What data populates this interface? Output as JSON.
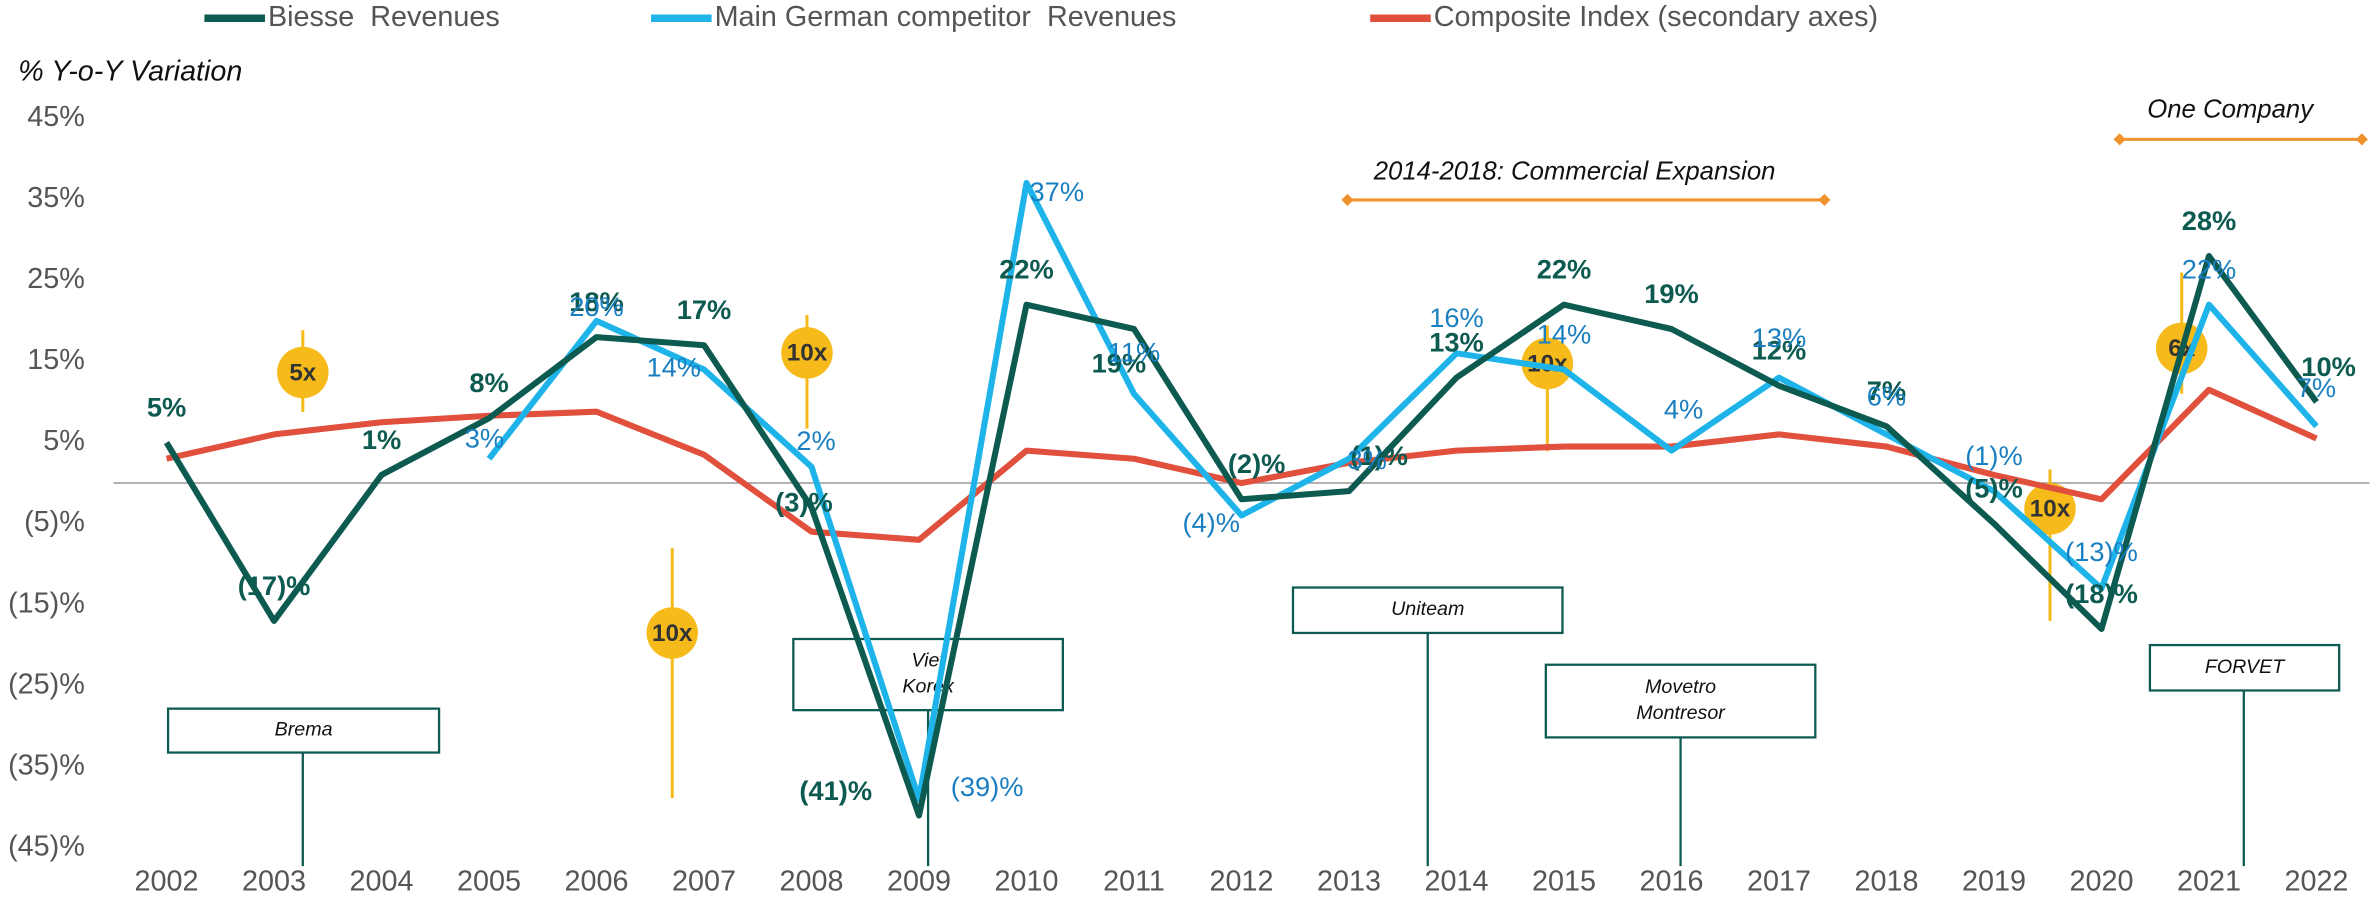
{
  "chart_data": {
    "type": "line",
    "y_axis_title": "% Y-o-Y Variation",
    "categories": [
      "2002",
      "2003",
      "2004",
      "2005",
      "2006",
      "2007",
      "2008",
      "2009",
      "2010",
      "2011",
      "2012",
      "2013",
      "2014",
      "2015",
      "2016",
      "2017",
      "2018",
      "2019",
      "2020",
      "2021",
      "2022"
    ],
    "series": [
      {
        "name": "Biesse  Revenues",
        "color": "#0d5a50",
        "values": [
          5,
          -17,
          1,
          8,
          18,
          17,
          -3,
          -41,
          22,
          19,
          -2,
          -1,
          13,
          22,
          19,
          12,
          7,
          -5,
          -18,
          28,
          10
        ],
        "value_labels": [
          "5%",
          "(17)%",
          "1%",
          "8%",
          "18%",
          "17%",
          "(3)%",
          "(41)%",
          "22%",
          "19%",
          "(2)%",
          "(1)%",
          "13%",
          "22%",
          "19%",
          "12%",
          "7%",
          "(5)%",
          "(18)%",
          "28%",
          "10%"
        ]
      },
      {
        "name": "Main German competitor  Revenues",
        "color": "#1eb4ea",
        "values": [
          null,
          null,
          null,
          3,
          20,
          14,
          2,
          -39,
          37,
          11,
          -4,
          3,
          16,
          14,
          4,
          13,
          6,
          -1,
          -13,
          22,
          7
        ],
        "value_labels": [
          null,
          null,
          null,
          "3%",
          "20%",
          "14%",
          "2%",
          "(39)%",
          "37%",
          "11%",
          "(4)%",
          "3%",
          "16%",
          "14%",
          "4%",
          "13%",
          "6%",
          "(1)%",
          "(13)%",
          "22%",
          "7%"
        ]
      },
      {
        "name": "Composite Index (secondary axes)",
        "color": "#e0503c",
        "values": [
          3,
          6,
          7.5,
          8.3,
          8.8,
          3.5,
          -6,
          -7,
          4,
          3,
          0,
          2.5,
          4,
          4.5,
          4.5,
          6,
          4.5,
          1,
          -2,
          11.5,
          5.5
        ]
      }
    ],
    "ylim": [
      -45,
      45
    ],
    "yticks": [
      {
        "value": 45,
        "label": "45%"
      },
      {
        "value": 35,
        "label": "35%"
      },
      {
        "value": 25,
        "label": "25%"
      },
      {
        "value": 15,
        "label": "15%"
      },
      {
        "value": 5,
        "label": "5%"
      },
      {
        "value": -5,
        "label": "(5)%"
      },
      {
        "value": -15,
        "label": "(15)%"
      },
      {
        "value": -25,
        "label": "(25)%"
      },
      {
        "value": -35,
        "label": "(35)%"
      },
      {
        "value": -45,
        "label": "(45)%"
      }
    ],
    "multiples": [
      "5x",
      "10x",
      "10x",
      "10x",
      "10x",
      "6x"
    ],
    "acquisitions": [
      [
        "Brema"
      ],
      [
        "Viet",
        "Korex"
      ],
      [
        "Uniteam"
      ],
      [
        "Movetro",
        "Montresor"
      ],
      [
        "FORVET"
      ]
    ],
    "periods": [
      "2014-2018: Commercial Expansion",
      "One Company"
    ]
  }
}
